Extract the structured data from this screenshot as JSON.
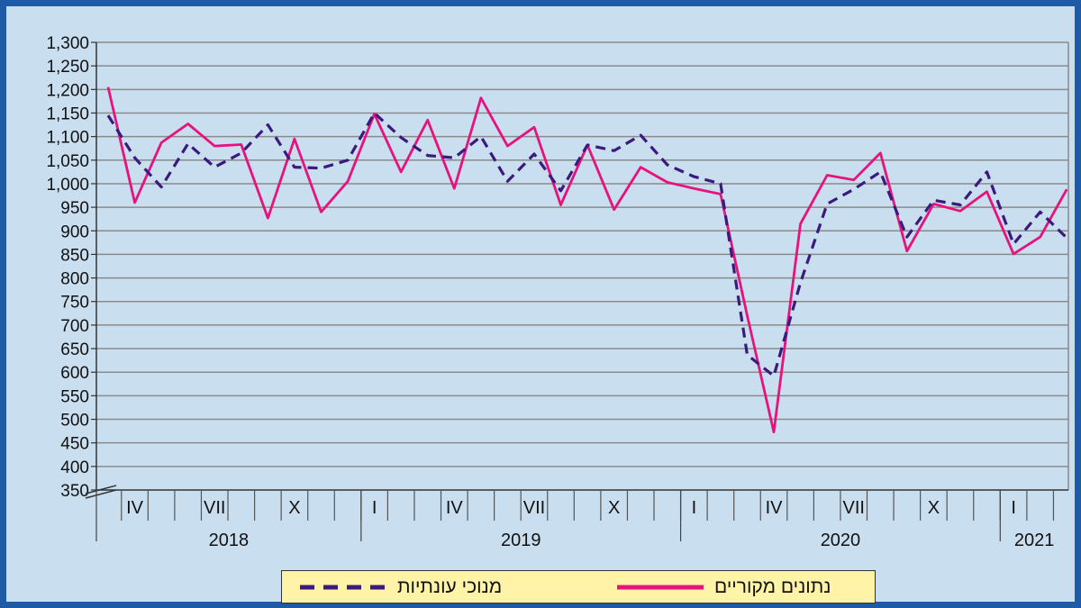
{
  "chart_data": {
    "type": "line",
    "ylim": [
      350,
      1300
    ],
    "yticks": [
      350,
      400,
      450,
      500,
      550,
      600,
      650,
      700,
      750,
      800,
      850,
      900,
      950,
      1000,
      1050,
      1100,
      1150,
      1200,
      1250,
      1300
    ],
    "ytick_labels": [
      "350",
      "400",
      "450",
      "500",
      "550",
      "600",
      "650",
      "700",
      "750",
      "800",
      "850",
      "900",
      "950",
      "1,000",
      "1,050",
      "1,100",
      "1,150",
      "1,200",
      "1,250",
      "1,300"
    ],
    "month_labels": [
      {
        "label": "IV",
        "index": 1
      },
      {
        "label": "VII",
        "index": 4
      },
      {
        "label": "X",
        "index": 7
      },
      {
        "label": "I",
        "index": 10
      },
      {
        "label": "IV",
        "index": 13
      },
      {
        "label": "VII",
        "index": 16
      },
      {
        "label": "X",
        "index": 19
      },
      {
        "label": "I",
        "index": 22
      },
      {
        "label": "IV",
        "index": 25
      },
      {
        "label": "VII",
        "index": 28
      },
      {
        "label": "X",
        "index": 31
      },
      {
        "label": "I",
        "index": 34
      }
    ],
    "years": [
      {
        "label": "2018",
        "start": 0,
        "end": 10
      },
      {
        "label": "2019",
        "start": 10,
        "end": 22
      },
      {
        "label": "2020",
        "start": 22,
        "end": 34
      },
      {
        "label": "2021",
        "start": 34,
        "end": 37
      }
    ],
    "n_points": 37,
    "series": [
      {
        "name": "נתונים מקוריים",
        "color": "#e8127c",
        "style": "solid",
        "values": [
          1205,
          960,
          1087,
          1127,
          1080,
          1083,
          927,
          1095,
          940,
          1005,
          1148,
          1025,
          1135,
          990,
          1182,
          1080,
          1120,
          955,
          1082,
          945,
          1035,
          1003,
          990,
          978,
          720,
          473,
          915,
          1018,
          1008,
          1065,
          857,
          957,
          942,
          983,
          851,
          887,
          988
        ]
      },
      {
        "name": "מנוכי עונתיות",
        "color": "#3b1a7e",
        "style": "dashed",
        "values": [
          1145,
          1055,
          993,
          1085,
          1035,
          1065,
          1125,
          1035,
          1033,
          1050,
          1150,
          1098,
          1060,
          1055,
          1100,
          1005,
          1063,
          985,
          1082,
          1070,
          1103,
          1040,
          1015,
          1000,
          637,
          592,
          790,
          957,
          988,
          1025,
          887,
          965,
          955,
          1025,
          872,
          940,
          885
        ]
      }
    ]
  },
  "legend": {
    "original_label": "נתונים מקוריים",
    "seasonal_label": "מנוכי עונתיות"
  }
}
